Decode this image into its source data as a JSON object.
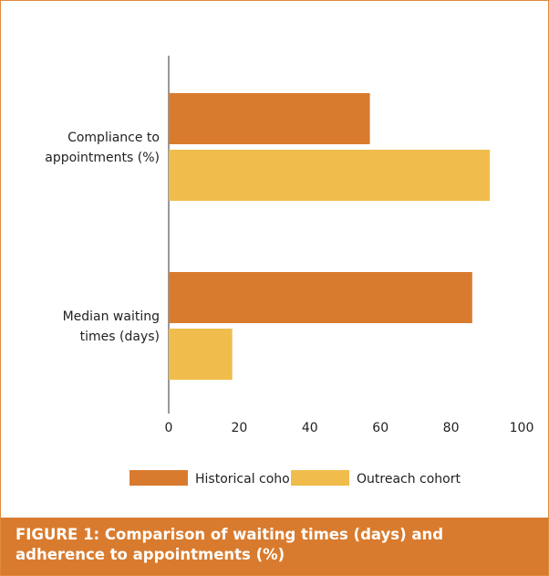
{
  "chart_data": {
    "type": "bar",
    "orientation": "horizontal",
    "title": "FIGURE 1: Comparison of waiting times (days) and adherence to appointments (%)",
    "categories": [
      "Compliance to\nappointments (%)",
      "Median waiting\ntimes (days)"
    ],
    "series": [
      {
        "name": "Historical cohort",
        "color": "#d97b2e",
        "values": [
          57,
          86
        ]
      },
      {
        "name": "Outreach cohort",
        "color": "#f0bd4c",
        "values": [
          91,
          18
        ]
      }
    ],
    "xlim": [
      0,
      100
    ],
    "xticks": [
      0,
      20,
      40,
      60,
      80,
      100
    ],
    "legend": "bottom"
  }
}
